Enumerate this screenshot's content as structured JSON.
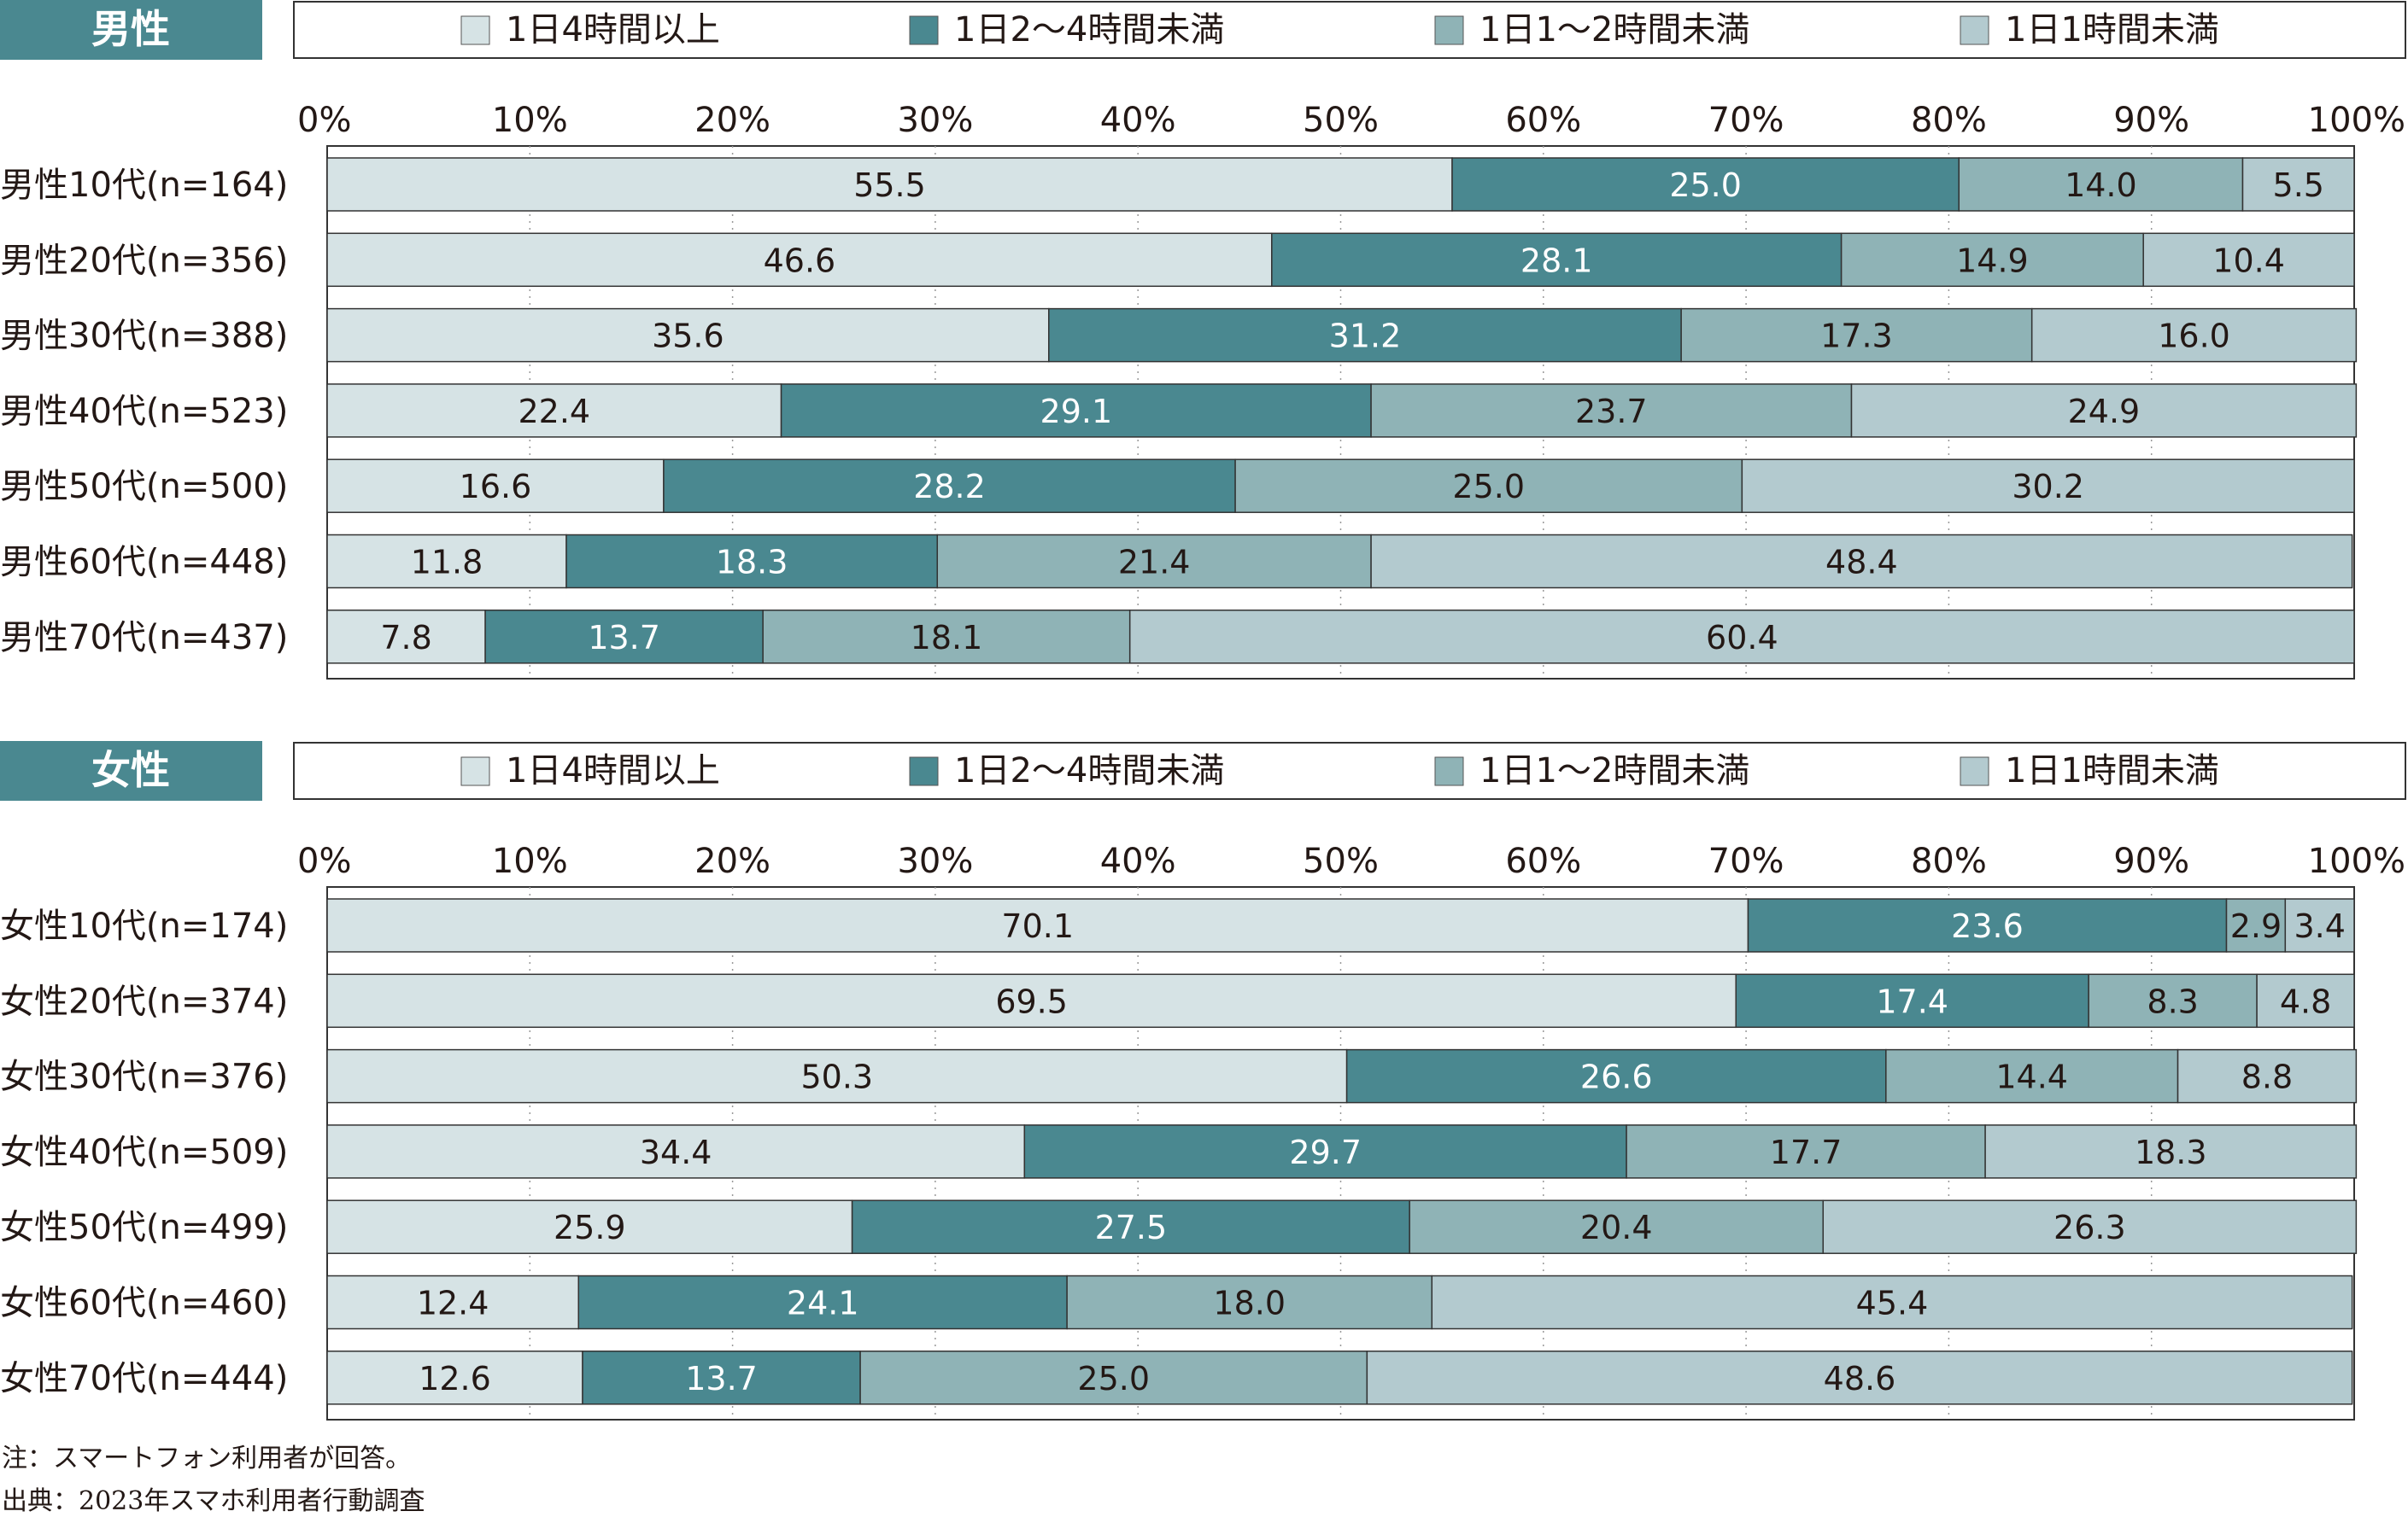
{
  "colors": {
    "cat1": "#d6e3e5",
    "cat2": "#4a8890",
    "cat3": "#8fb3b6",
    "cat4": "#b3cacf",
    "title_bg": "#4a8890",
    "border": "#333333",
    "text": "#231815"
  },
  "legend": [
    "1日4時間以上",
    "1日2～4時間未満",
    "1日1～2時間未満",
    "1日1時間未満"
  ],
  "axis_ticks": [
    "0%",
    "10%",
    "20%",
    "30%",
    "40%",
    "50%",
    "60%",
    "70%",
    "80%",
    "90%",
    "100%"
  ],
  "chart_data": [
    {
      "type": "bar",
      "orientation": "horizontal",
      "stacked": true,
      "title": "男性",
      "xlim": [
        0,
        100
      ],
      "categories": [
        "男性10代(n=164)",
        "男性20代(n=356)",
        "男性30代(n=388)",
        "男性40代(n=523)",
        "男性50代(n=500)",
        "男性60代(n=448)",
        "男性70代(n=437)"
      ],
      "series": [
        {
          "name": "1日4時間以上",
          "values": [
            55.5,
            46.6,
            35.6,
            22.4,
            16.6,
            11.8,
            7.8
          ]
        },
        {
          "name": "1日2～4時間未満",
          "values": [
            25.0,
            28.1,
            31.2,
            29.1,
            28.2,
            18.3,
            13.7
          ]
        },
        {
          "name": "1日1～2時間未満",
          "values": [
            14.0,
            14.9,
            17.3,
            23.7,
            25.0,
            21.4,
            18.1
          ]
        },
        {
          "name": "1日1時間未満",
          "values": [
            5.5,
            10.4,
            16.0,
            24.9,
            30.2,
            48.4,
            60.4
          ]
        }
      ]
    },
    {
      "type": "bar",
      "orientation": "horizontal",
      "stacked": true,
      "title": "女性",
      "xlim": [
        0,
        100
      ],
      "categories": [
        "女性10代(n=174)",
        "女性20代(n=374)",
        "女性30代(n=376)",
        "女性40代(n=509)",
        "女性50代(n=499)",
        "女性60代(n=460)",
        "女性70代(n=444)"
      ],
      "series": [
        {
          "name": "1日4時間以上",
          "values": [
            70.1,
            69.5,
            50.3,
            34.4,
            25.9,
            12.4,
            12.6
          ]
        },
        {
          "name": "1日2～4時間未満",
          "values": [
            23.6,
            17.4,
            26.6,
            29.7,
            27.5,
            24.1,
            13.7
          ]
        },
        {
          "name": "1日1～2時間未満",
          "values": [
            2.9,
            8.3,
            14.4,
            17.7,
            20.4,
            18.0,
            25.0
          ]
        },
        {
          "name": "1日1時間未満",
          "values": [
            3.4,
            4.8,
            8.8,
            18.3,
            26.3,
            45.4,
            48.6
          ]
        }
      ]
    }
  ],
  "notes": {
    "note": "注：スマートフォン利用者が回答。",
    "source": "出典：2023年スマホ利用者行動調査"
  }
}
